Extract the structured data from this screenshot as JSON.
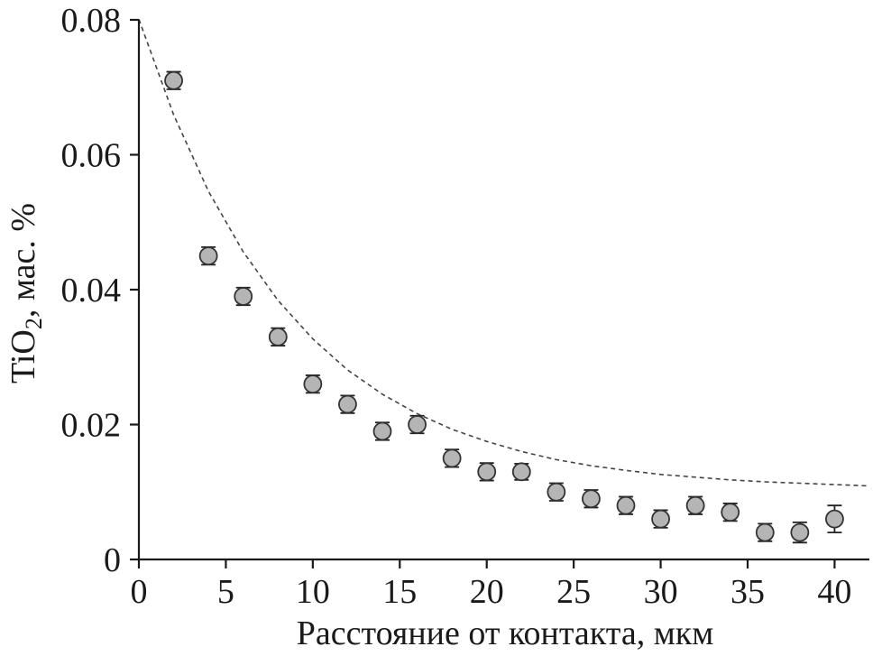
{
  "chart_data": {
    "type": "scatter",
    "xlabel": "Расстояние от контакта, мкм",
    "ylabel_main": "TiO",
    "ylabel_sub": "2",
    "ylabel_rest": ", мас. %",
    "xlim": [
      0,
      42
    ],
    "ylim": [
      0,
      0.08
    ],
    "x_ticks": [
      0,
      5,
      10,
      15,
      20,
      25,
      30,
      35,
      40
    ],
    "y_ticks": [
      0,
      0.02,
      0.04,
      0.06,
      0.08
    ],
    "y_tick_labels": [
      "0",
      "0.02",
      "0.04",
      "0.06",
      "0.08"
    ],
    "x_tick_labels": [
      "0",
      "5",
      "10",
      "15",
      "20",
      "25",
      "30",
      "35",
      "40"
    ],
    "grid": false,
    "points": [
      {
        "x": 2,
        "y": 0.071,
        "err": 0.0013
      },
      {
        "x": 4,
        "y": 0.045,
        "err": 0.0013
      },
      {
        "x": 6,
        "y": 0.039,
        "err": 0.0013
      },
      {
        "x": 8,
        "y": 0.033,
        "err": 0.0013
      },
      {
        "x": 10,
        "y": 0.026,
        "err": 0.0013
      },
      {
        "x": 12,
        "y": 0.023,
        "err": 0.0013
      },
      {
        "x": 14,
        "y": 0.019,
        "err": 0.0013
      },
      {
        "x": 16,
        "y": 0.02,
        "err": 0.0013
      },
      {
        "x": 18,
        "y": 0.015,
        "err": 0.0013
      },
      {
        "x": 20,
        "y": 0.013,
        "err": 0.0013
      },
      {
        "x": 22,
        "y": 0.013,
        "err": 0.0012
      },
      {
        "x": 24,
        "y": 0.01,
        "err": 0.0013
      },
      {
        "x": 26,
        "y": 0.009,
        "err": 0.0013
      },
      {
        "x": 28,
        "y": 0.008,
        "err": 0.0013
      },
      {
        "x": 30,
        "y": 0.006,
        "err": 0.0013
      },
      {
        "x": 32,
        "y": 0.008,
        "err": 0.0013
      },
      {
        "x": 34,
        "y": 0.007,
        "err": 0.0013
      },
      {
        "x": 36,
        "y": 0.004,
        "err": 0.0013
      },
      {
        "x": 38,
        "y": 0.004,
        "err": 0.0015
      },
      {
        "x": 40,
        "y": 0.006,
        "err": 0.002
      }
    ],
    "fit_curve": {
      "style": "dashed",
      "model": "exponential decay",
      "x": [
        0,
        2,
        4,
        6,
        8,
        10,
        12,
        14,
        16,
        18,
        20,
        22,
        24,
        26,
        28,
        30,
        32,
        34,
        36,
        38,
        40,
        42
      ],
      "y": [
        0.0801,
        0.0659,
        0.0546,
        0.0456,
        0.0384,
        0.0327,
        0.0281,
        0.0245,
        0.0216,
        0.0193,
        0.0175,
        0.016,
        0.0148,
        0.0139,
        0.0132,
        0.0126,
        0.0122,
        0.0118,
        0.0115,
        0.0113,
        0.0111,
        0.0109
      ]
    }
  },
  "colors": {
    "marker_fill": "#b5b5b5",
    "marker_stroke": "#333333",
    "curve": "#444444",
    "axis": "#1a1a1a"
  }
}
